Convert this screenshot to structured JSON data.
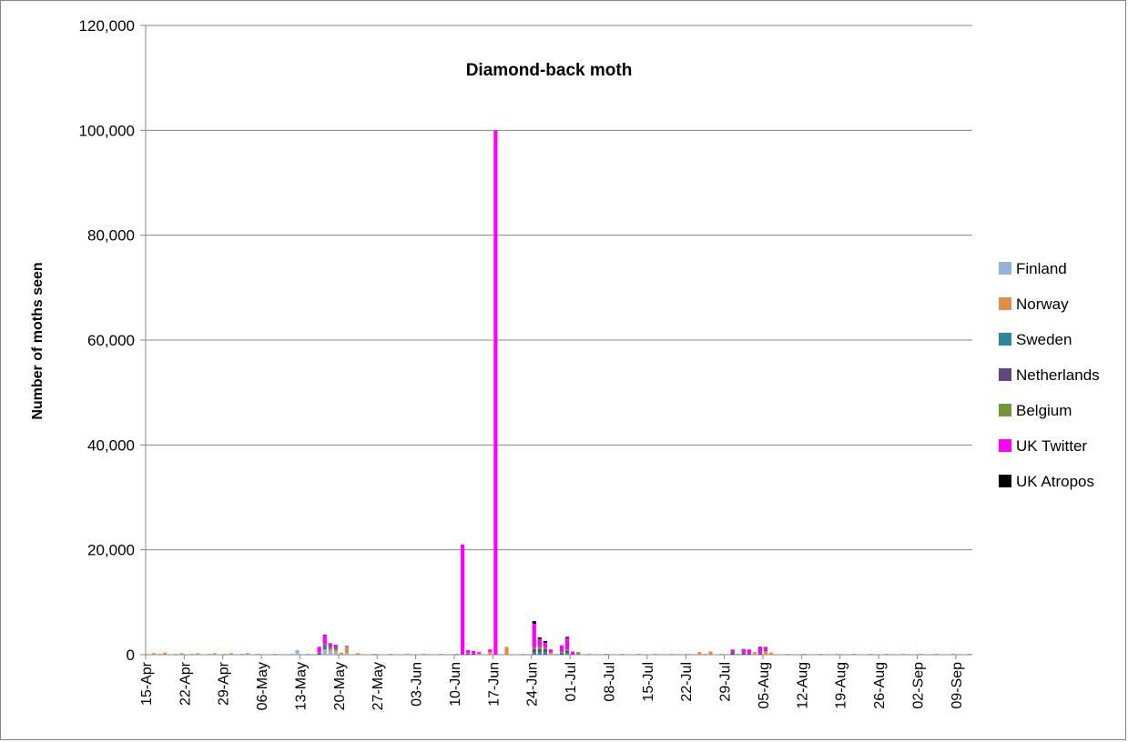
{
  "chart_data": {
    "type": "bar",
    "stacked": true,
    "title": "Diamond-back moth",
    "xlabel": "",
    "ylabel": "Number of moths seen",
    "ylim": [
      0,
      120000
    ],
    "yticks": [
      "0",
      "20,000",
      "40,000",
      "60,000",
      "80,000",
      "100,000",
      "120,000"
    ],
    "ytick_values": [
      0,
      20000,
      40000,
      60000,
      80000,
      100000,
      120000
    ],
    "grid": true,
    "legend_position": "right",
    "x_start": "2016-04-15",
    "x_end": "2016-09-12",
    "xticks": [
      "15-Apr",
      "22-Apr",
      "29-Apr",
      "06-May",
      "13-May",
      "20-May",
      "27-May",
      "03-Jun",
      "10-Jun",
      "17-Jun",
      "24-Jun",
      "01-Jul",
      "08-Jul",
      "15-Jul",
      "22-Jul",
      "29-Jul",
      "05-Aug",
      "12-Aug",
      "19-Aug",
      "26-Aug",
      "02-Sep",
      "09-Sep"
    ],
    "xtick_dates": [
      "2016-04-15",
      "2016-04-22",
      "2016-04-29",
      "2016-05-06",
      "2016-05-13",
      "2016-05-20",
      "2016-05-27",
      "2016-06-03",
      "2016-06-10",
      "2016-06-17",
      "2016-06-24",
      "2016-07-01",
      "2016-07-08",
      "2016-07-15",
      "2016-07-22",
      "2016-07-29",
      "2016-08-05",
      "2016-08-12",
      "2016-08-19",
      "2016-08-26",
      "2016-09-02",
      "2016-09-09"
    ],
    "series": [
      {
        "name": "Finland",
        "color": "#95b3d7",
        "points": [
          [
            "2016-05-12",
            900
          ],
          [
            "2016-05-17",
            1000
          ],
          [
            "2016-05-18",
            600
          ],
          [
            "2016-05-19",
            500
          ],
          [
            "2016-05-21",
            300
          ]
        ]
      },
      {
        "name": "Norway",
        "color": "#e08f4a",
        "points": [
          [
            "2016-04-16",
            300
          ],
          [
            "2016-04-18",
            400
          ],
          [
            "2016-04-21",
            300
          ],
          [
            "2016-04-24",
            300
          ],
          [
            "2016-04-27",
            300
          ],
          [
            "2016-04-30",
            300
          ],
          [
            "2016-05-03",
            300
          ],
          [
            "2016-05-18",
            500
          ],
          [
            "2016-05-19",
            400
          ],
          [
            "2016-05-20",
            400
          ],
          [
            "2016-05-21",
            1200
          ],
          [
            "2016-05-23",
            300
          ],
          [
            "2016-06-19",
            1500
          ],
          [
            "2016-06-14",
            200
          ],
          [
            "2016-06-16",
            500
          ],
          [
            "2016-06-27",
            400
          ],
          [
            "2016-07-24",
            500
          ],
          [
            "2016-07-26",
            600
          ],
          [
            "2016-08-03",
            500
          ],
          [
            "2016-08-05",
            700
          ],
          [
            "2016-08-06",
            400
          ]
        ]
      },
      {
        "name": "Sweden",
        "color": "#31859b",
        "points": [
          [
            "2016-05-17",
            500
          ],
          [
            "2016-05-18",
            400
          ],
          [
            "2016-05-19",
            400
          ],
          [
            "2016-05-21",
            200
          ],
          [
            "2016-06-24",
            400
          ],
          [
            "2016-06-25",
            500
          ],
          [
            "2016-06-26",
            500
          ],
          [
            "2016-06-30",
            300
          ]
        ]
      },
      {
        "name": "Netherlands",
        "color": "#604a7b",
        "points": [
          [
            "2016-05-16",
            300
          ],
          [
            "2016-05-17",
            300
          ],
          [
            "2016-06-12",
            200
          ],
          [
            "2016-06-13",
            200
          ],
          [
            "2016-06-24",
            700
          ],
          [
            "2016-06-25",
            600
          ],
          [
            "2016-06-26",
            600
          ],
          [
            "2016-06-29",
            300
          ],
          [
            "2016-06-30",
            500
          ],
          [
            "2016-07-30",
            500
          ],
          [
            "2016-08-01",
            300
          ],
          [
            "2016-08-02",
            300
          ],
          [
            "2016-08-04",
            200
          ],
          [
            "2016-08-05",
            300
          ]
        ]
      },
      {
        "name": "Belgium",
        "color": "#77933c",
        "points": [
          [
            "2016-05-16",
            100
          ],
          [
            "2016-05-17",
            200
          ],
          [
            "2016-06-12",
            100
          ],
          [
            "2016-06-24",
            300
          ],
          [
            "2016-06-25",
            400
          ],
          [
            "2016-06-26",
            300
          ],
          [
            "2016-06-29",
            300
          ],
          [
            "2016-06-30",
            200
          ],
          [
            "2016-07-02",
            500
          ]
        ]
      },
      {
        "name": "UK Twitter",
        "color": "#ff00ff",
        "points": [
          [
            "2016-05-16",
            1100
          ],
          [
            "2016-05-17",
            1700
          ],
          [
            "2016-05-18",
            700
          ],
          [
            "2016-05-19",
            600
          ],
          [
            "2016-06-11",
            21000
          ],
          [
            "2016-06-12",
            600
          ],
          [
            "2016-06-13",
            500
          ],
          [
            "2016-06-14",
            300
          ],
          [
            "2016-06-16",
            500
          ],
          [
            "2016-06-17",
            100000
          ],
          [
            "2016-06-24",
            4500
          ],
          [
            "2016-06-25",
            1500
          ],
          [
            "2016-06-26",
            900
          ],
          [
            "2016-06-27",
            600
          ],
          [
            "2016-06-29",
            1200
          ],
          [
            "2016-06-30",
            2200
          ],
          [
            "2016-07-01",
            600
          ],
          [
            "2016-07-30",
            500
          ],
          [
            "2016-08-01",
            800
          ],
          [
            "2016-08-02",
            700
          ],
          [
            "2016-08-04",
            1200
          ],
          [
            "2016-08-05",
            500
          ]
        ]
      },
      {
        "name": "UK Atropos",
        "color": "#000000",
        "points": [
          [
            "2016-05-17",
            100
          ],
          [
            "2016-06-24",
            500
          ],
          [
            "2016-06-25",
            300
          ],
          [
            "2016-06-26",
            300
          ],
          [
            "2016-06-30",
            200
          ],
          [
            "2016-08-04",
            100
          ]
        ]
      }
    ],
    "baseline_value": 120
  }
}
